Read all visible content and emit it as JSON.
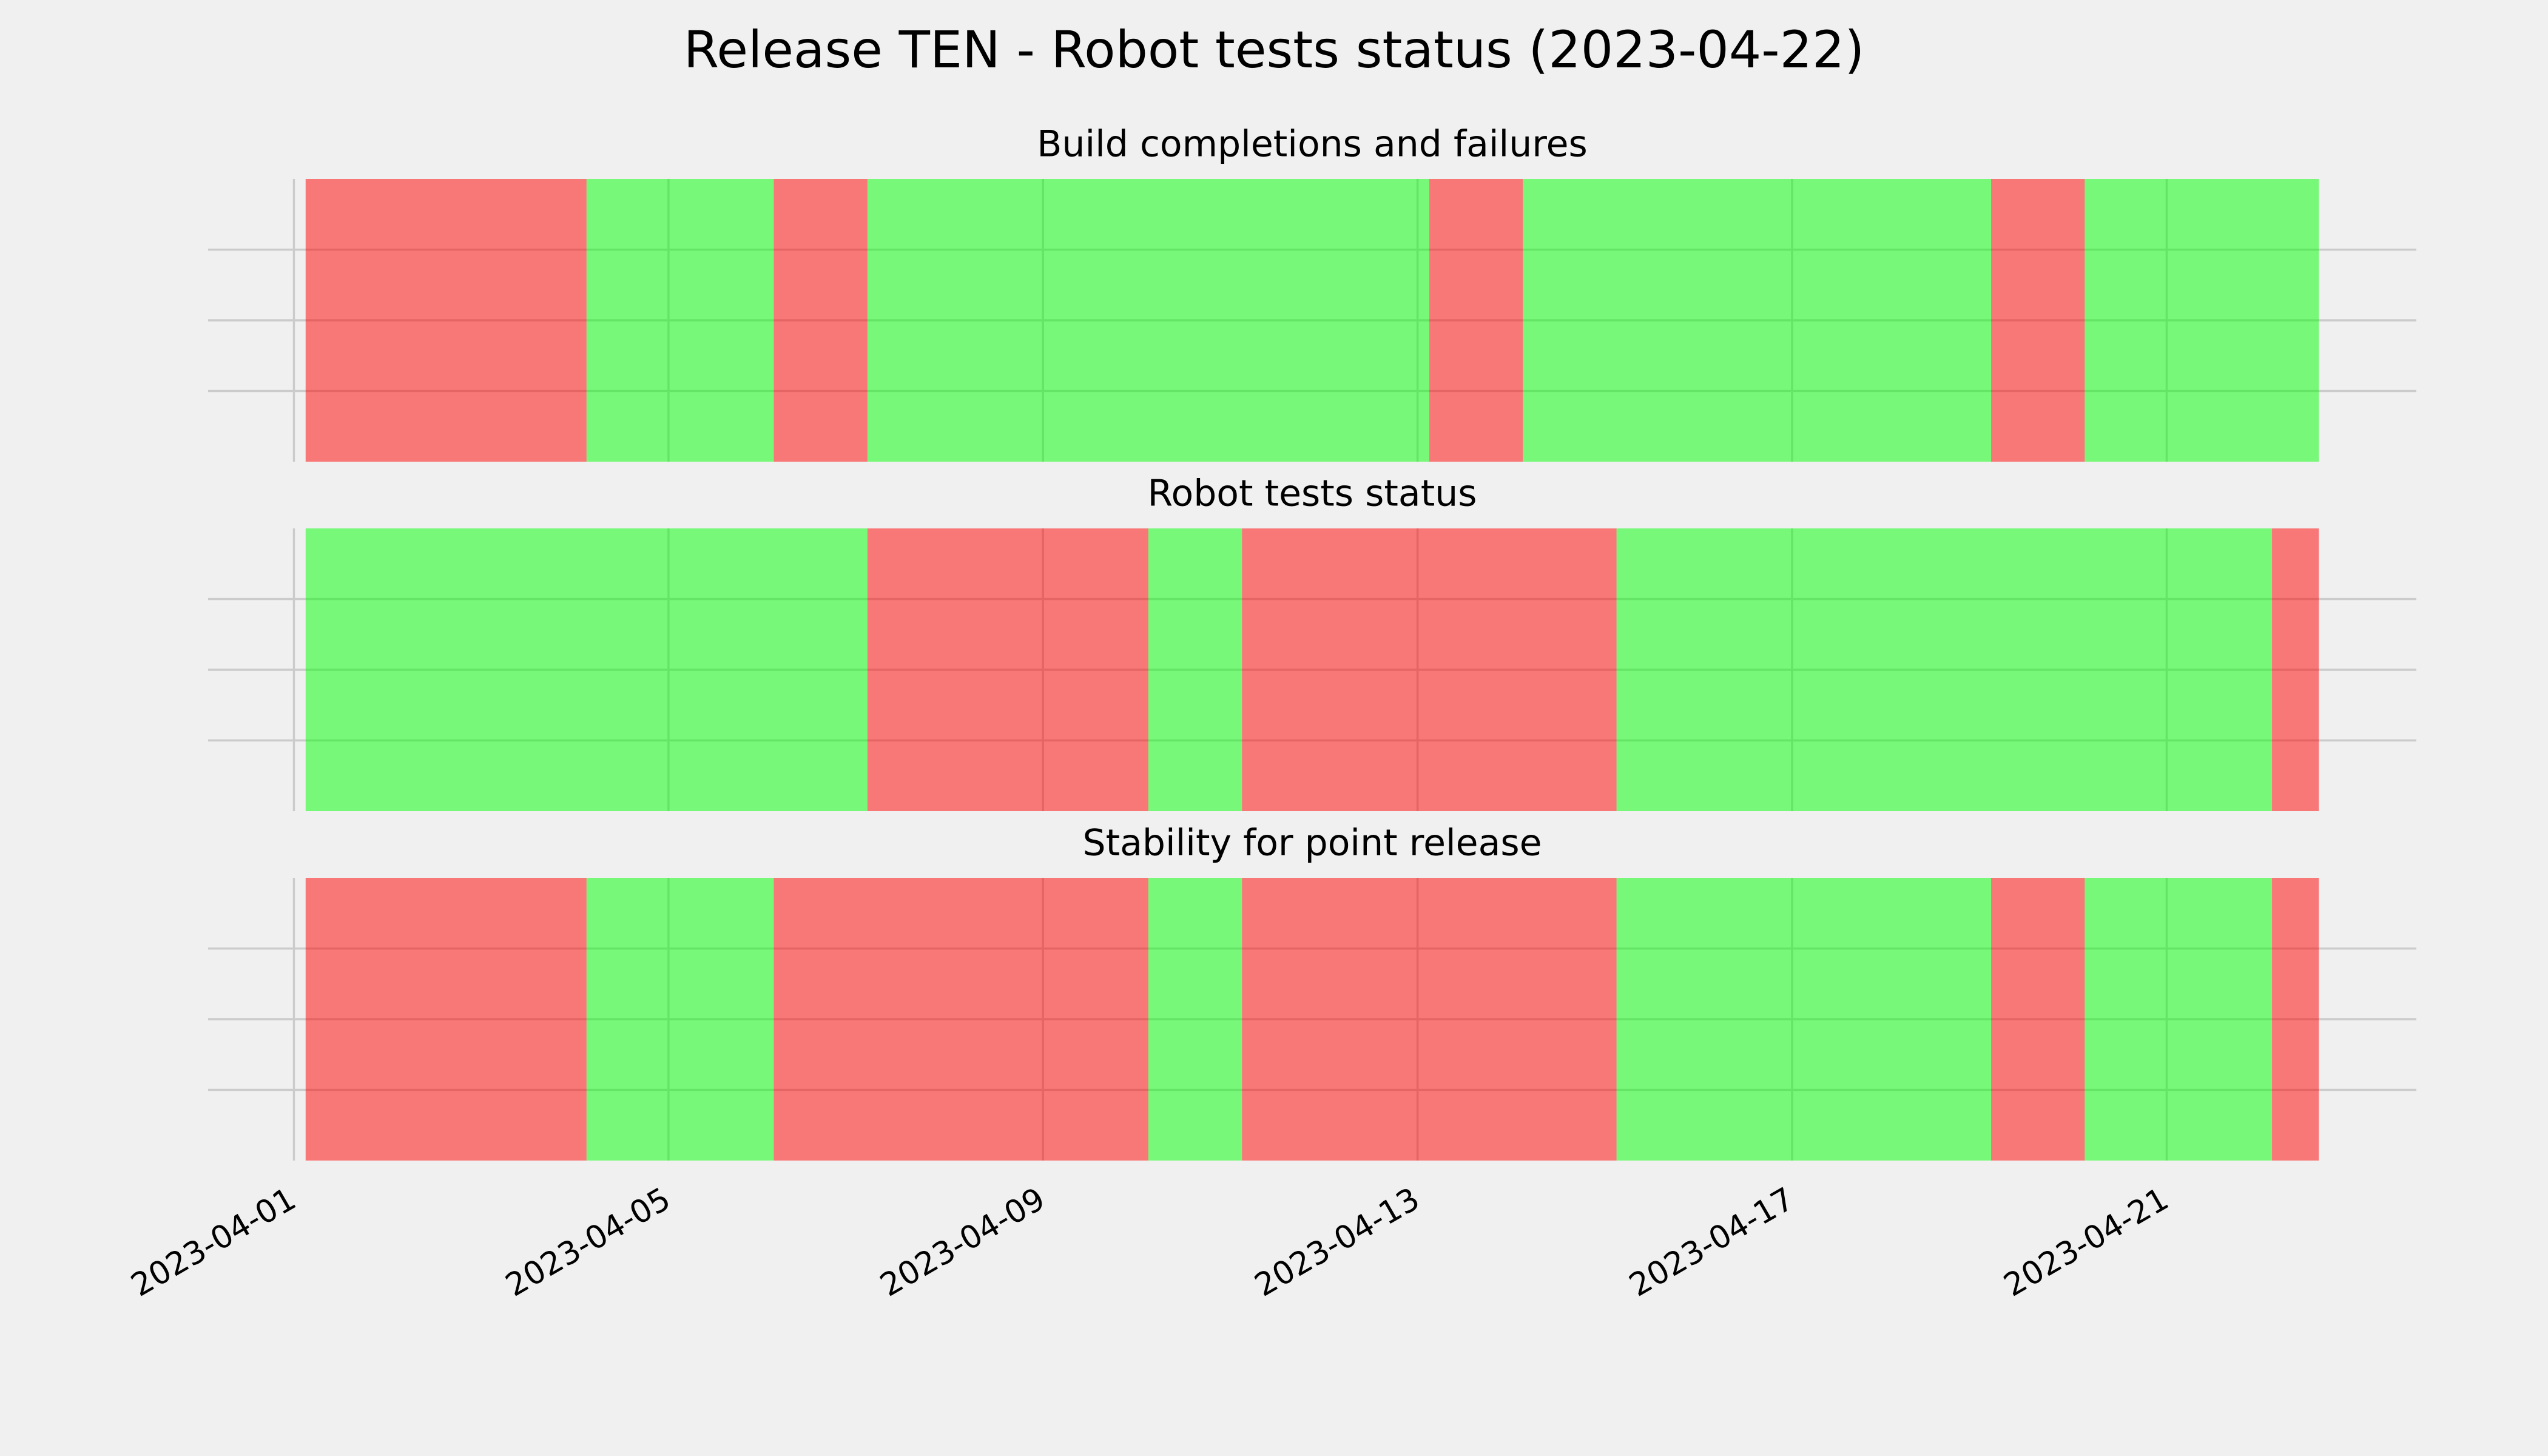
{
  "chart_data": {
    "type": "broken_barh",
    "title": "Release TEN - Robot tests status (2023-04-22)",
    "xlim": [
      "2023-03-31T02:00",
      "2023-04-23T16:00"
    ],
    "xticks": [
      "2023-04-01",
      "2023-04-05",
      "2023-04-09",
      "2023-04-13",
      "2023-04-17",
      "2023-04-21"
    ],
    "grid": true,
    "bar_opacity": 0.5,
    "subplots": [
      {
        "title": "Build completions and failures",
        "ylim": [
          0,
          1
        ],
        "yticks": [
          0.25,
          0.5,
          0.75
        ],
        "segments": [
          {
            "start": "2023-04-01T03:00",
            "end": "2023-04-04T03:00",
            "color": "#ff0000"
          },
          {
            "start": "2023-04-04T03:00",
            "end": "2023-04-06T03:00",
            "color": "#00ff00"
          },
          {
            "start": "2023-04-06T03:00",
            "end": "2023-04-07T03:00",
            "color": "#ff0000"
          },
          {
            "start": "2023-04-07T03:00",
            "end": "2023-04-13T03:00",
            "color": "#00ff00"
          },
          {
            "start": "2023-04-13T03:00",
            "end": "2023-04-14T03:00",
            "color": "#ff0000"
          },
          {
            "start": "2023-04-14T03:00",
            "end": "2023-04-19T03:00",
            "color": "#00ff00"
          },
          {
            "start": "2023-04-19T03:00",
            "end": "2023-04-20T03:00",
            "color": "#ff0000"
          },
          {
            "start": "2023-04-20T03:00",
            "end": "2023-04-22T15:00",
            "color": "#00ff00"
          }
        ]
      },
      {
        "title": "Robot tests status",
        "ylim": [
          0,
          1
        ],
        "yticks": [
          0.25,
          0.5,
          0.75
        ],
        "segments": [
          {
            "start": "2023-04-01T03:00",
            "end": "2023-04-07T03:00",
            "color": "#00ff00"
          },
          {
            "start": "2023-04-07T03:00",
            "end": "2023-04-10T03:00",
            "color": "#ff0000"
          },
          {
            "start": "2023-04-10T03:00",
            "end": "2023-04-11T03:00",
            "color": "#00ff00"
          },
          {
            "start": "2023-04-11T03:00",
            "end": "2023-04-15T03:00",
            "color": "#ff0000"
          },
          {
            "start": "2023-04-15T03:00",
            "end": "2023-04-22T03:00",
            "color": "#00ff00"
          },
          {
            "start": "2023-04-22T03:00",
            "end": "2023-04-22T15:00",
            "color": "#ff0000"
          }
        ]
      },
      {
        "title": "Stability for point release",
        "ylim": [
          0,
          1
        ],
        "yticks": [
          0.25,
          0.5,
          0.75
        ],
        "segments": [
          {
            "start": "2023-04-01T03:00",
            "end": "2023-04-04T03:00",
            "color": "#ff0000"
          },
          {
            "start": "2023-04-04T03:00",
            "end": "2023-04-06T03:00",
            "color": "#00ff00"
          },
          {
            "start": "2023-04-06T03:00",
            "end": "2023-04-10T03:00",
            "color": "#ff0000"
          },
          {
            "start": "2023-04-10T03:00",
            "end": "2023-04-11T03:00",
            "color": "#00ff00"
          },
          {
            "start": "2023-04-11T03:00",
            "end": "2023-04-15T03:00",
            "color": "#ff0000"
          },
          {
            "start": "2023-04-15T03:00",
            "end": "2023-04-19T03:00",
            "color": "#00ff00"
          },
          {
            "start": "2023-04-19T03:00",
            "end": "2023-04-20T03:00",
            "color": "#ff0000"
          },
          {
            "start": "2023-04-20T03:00",
            "end": "2023-04-22T03:00",
            "color": "#00ff00"
          },
          {
            "start": "2023-04-22T03:00",
            "end": "2023-04-22T15:00",
            "color": "#ff0000"
          }
        ]
      }
    ]
  }
}
